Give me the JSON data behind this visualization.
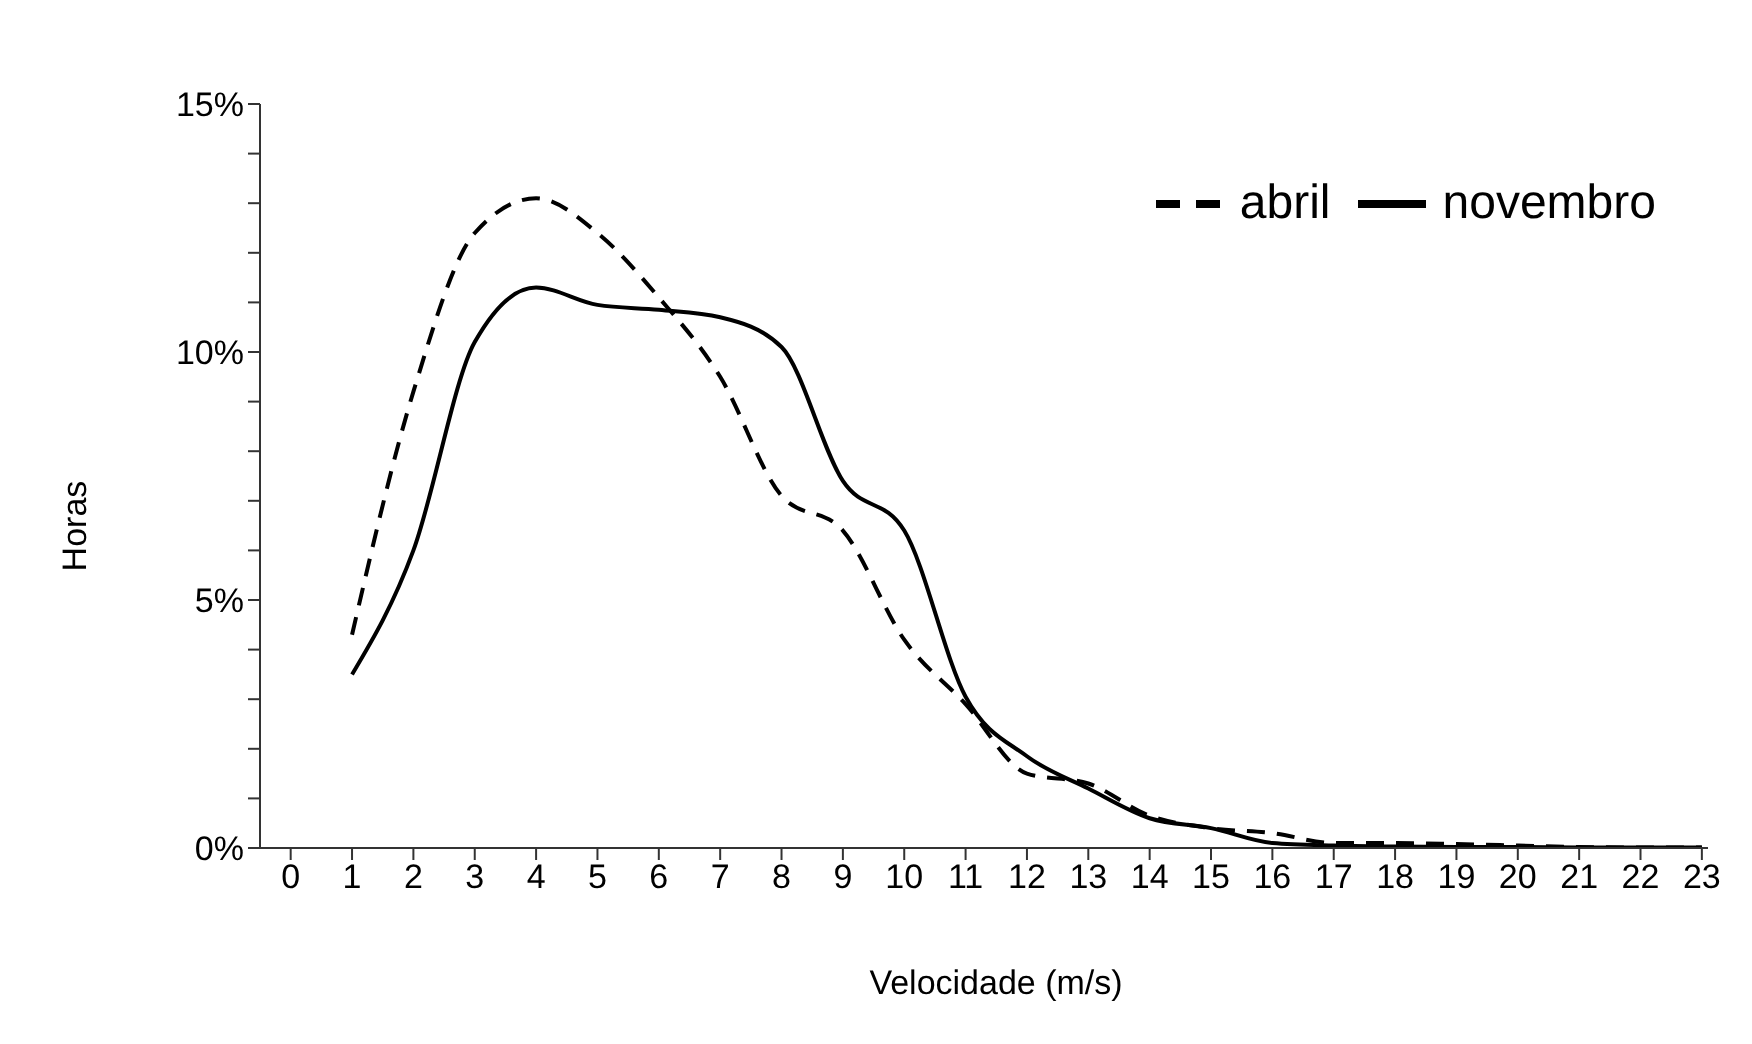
{
  "chart_data": {
    "type": "line",
    "xlabel": "Velocidade (m/s)",
    "ylabel": "Horas",
    "x": [
      1,
      2,
      3,
      4,
      5,
      6,
      7,
      8,
      9,
      10,
      11,
      12,
      13,
      14,
      15,
      16,
      17,
      18,
      19,
      20,
      21,
      22,
      23
    ],
    "series": [
      {
        "name": "abril",
        "color": "#000000",
        "line_style": "dashed",
        "values": [
          4.3,
          9.2,
          12.4,
          13.1,
          12.4,
          11.1,
          9.5,
          7.1,
          6.4,
          4.2,
          2.9,
          1.5,
          1.3,
          0.65,
          0.4,
          0.3,
          0.1,
          0.1,
          0.08,
          0.05,
          0.02,
          0.01,
          0.01
        ]
      },
      {
        "name": "novembro",
        "color": "#000000",
        "line_style": "solid",
        "values": [
          3.5,
          6.0,
          10.2,
          11.3,
          10.95,
          10.85,
          10.7,
          10.1,
          7.4,
          6.4,
          3.05,
          1.85,
          1.2,
          0.6,
          0.4,
          0.1,
          0.05,
          0.03,
          0.02,
          0.02,
          0.01,
          0.01,
          0.01
        ]
      }
    ],
    "xlim": [
      -0.5,
      23.1
    ],
    "xticks": [
      0,
      1,
      2,
      3,
      4,
      5,
      6,
      7,
      8,
      9,
      10,
      11,
      12,
      13,
      14,
      15,
      16,
      17,
      18,
      19,
      20,
      21,
      22,
      23
    ],
    "ylim": [
      0,
      15
    ],
    "yticks": [
      {
        "value": 0,
        "label": "0%"
      },
      {
        "value": 1,
        "label": null
      },
      {
        "value": 2,
        "label": null
      },
      {
        "value": 3,
        "label": null
      },
      {
        "value": 4,
        "label": null
      },
      {
        "value": 5,
        "label": "5%"
      },
      {
        "value": 6,
        "label": null
      },
      {
        "value": 7,
        "label": null
      },
      {
        "value": 8,
        "label": null
      },
      {
        "value": 9,
        "label": null
      },
      {
        "value": 10,
        "label": "10%"
      },
      {
        "value": 11,
        "label": null
      },
      {
        "value": 12,
        "label": null
      },
      {
        "value": 13,
        "label": null
      },
      {
        "value": 14,
        "label": null
      },
      {
        "value": 15,
        "label": "15%"
      }
    ],
    "legend": "top right",
    "grid": false,
    "marker": "none"
  }
}
